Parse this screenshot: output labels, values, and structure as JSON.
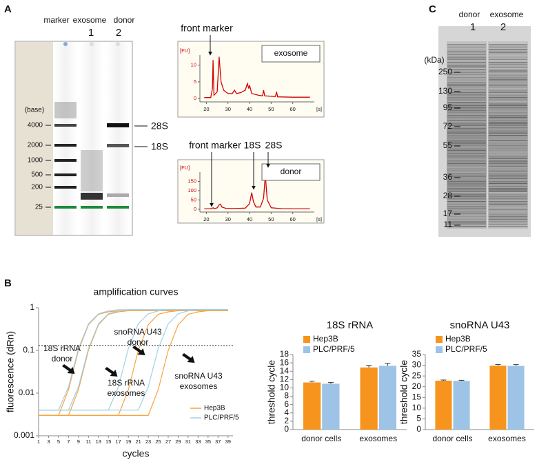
{
  "panel_labels": [
    "A",
    "B",
    "C"
  ],
  "gel_a": {
    "lanes": [
      "marker",
      "exosome",
      "donor"
    ],
    "lane_numbers": [
      "1",
      "2"
    ],
    "unit": "(base)",
    "ladder": [
      4000,
      2000,
      1000,
      500,
      200,
      25
    ],
    "bands": [
      "28S",
      "18S"
    ]
  },
  "gel_c": {
    "lanes": [
      "donor",
      "exosome"
    ],
    "lane_numbers": [
      "1",
      "2"
    ],
    "unit": "(kDa)",
    "ladder": [
      250,
      130,
      95,
      72,
      55,
      36,
      28,
      17,
      11
    ]
  },
  "chart_data": [
    {
      "type": "electropherogram",
      "legend_label": "exosome",
      "y_label": "[FU]",
      "x_label": "[s]",
      "color": "#d40000",
      "annotations": [
        "front marker"
      ],
      "x": [
        19,
        22,
        22.8,
        23.1,
        23.5,
        25,
        25.9,
        26.8,
        28,
        30,
        32,
        33,
        34,
        36,
        38,
        39,
        39.6,
        40,
        41,
        44,
        46,
        46.5,
        47,
        52,
        52.5,
        53,
        60,
        68
      ],
      "values": [
        0.3,
        0.3,
        3,
        11.5,
        1,
        2,
        12.5,
        5,
        2.5,
        1.5,
        1.5,
        2.5,
        1.5,
        1.8,
        2.5,
        4.5,
        3,
        4,
        1.5,
        1,
        0.8,
        2.5,
        0.8,
        0.6,
        2,
        0.5,
        0.4,
        0.4
      ],
      "xlim": [
        17,
        70
      ],
      "xticks": [
        20,
        30,
        40,
        50,
        60
      ],
      "ylim": [
        -1,
        13
      ],
      "yticks": [
        0,
        5,
        10
      ]
    },
    {
      "type": "electropherogram",
      "legend_label": "donor",
      "y_label": "[FU]",
      "x_label": "[s]",
      "color": "#d40000",
      "annotations": [
        "front marker",
        "18S",
        "28S"
      ],
      "x": [
        19,
        22,
        23.2,
        23.6,
        25,
        26,
        26.5,
        27.2,
        29,
        33,
        38,
        40,
        41,
        41.8,
        43,
        45,
        46.5,
        47.3,
        48.2,
        50,
        55,
        60,
        68
      ],
      "values": [
        2,
        2,
        8,
        2,
        8,
        25,
        28,
        12,
        5,
        4,
        6,
        30,
        90,
        40,
        12,
        12,
        60,
        185,
        50,
        8,
        3,
        2,
        2
      ],
      "xlim": [
        17,
        70
      ],
      "xticks": [
        20,
        30,
        40,
        50,
        60
      ],
      "ylim": [
        -15,
        200
      ],
      "yticks": [
        0,
        50,
        100,
        150
      ]
    },
    {
      "type": "amplification",
      "title": "amplification curves",
      "x_label": "cycles",
      "y_label": "fluorescence (dRn)",
      "log_y": true,
      "threshold": 0.13,
      "annotations": [
        [
          "18S rRNA",
          "donor"
        ],
        [
          "18S rRNA",
          "exosomes"
        ],
        [
          "snoRNA U43",
          "donor"
        ],
        [
          "snoRNA U43",
          "exosomes"
        ]
      ],
      "x": [
        1,
        3,
        5,
        7,
        9,
        11,
        13,
        15,
        17,
        19,
        21,
        23,
        25,
        27,
        29,
        31,
        33,
        35,
        37,
        39
      ],
      "xlim": [
        1,
        40
      ],
      "xticks": [
        1,
        3,
        5,
        7,
        9,
        11,
        13,
        15,
        17,
        19,
        21,
        23,
        25,
        27,
        29,
        31,
        33,
        35,
        37,
        39
      ],
      "ylim": [
        0.001,
        1
      ],
      "yticks": [
        0.001,
        0.01,
        0.1,
        1
      ],
      "series": [
        {
          "name": "Hep3B",
          "color": "#f7a33c",
          "curves": [
            [
              0.003,
              0.003,
              0.003,
              0.012,
              0.1,
              0.4,
              0.7,
              0.8,
              0.85,
              0.85,
              0.85,
              0.85,
              0.85,
              0.85,
              0.85,
              0.85,
              0.85,
              0.85,
              0.85,
              0.85
            ],
            [
              0.003,
              0.003,
              0.003,
              0.003,
              0.012,
              0.1,
              0.4,
              0.7,
              0.8,
              0.85,
              0.85,
              0.85,
              0.85,
              0.85,
              0.85,
              0.85,
              0.85,
              0.85,
              0.85,
              0.85
            ],
            [
              0.003,
              0.003,
              0.003,
              0.003,
              0.003,
              0.003,
              0.003,
              0.003,
              0.003,
              0.012,
              0.1,
              0.4,
              0.7,
              0.8,
              0.85,
              0.85,
              0.85,
              0.85,
              0.85,
              0.85
            ],
            [
              0.003,
              0.003,
              0.003,
              0.003,
              0.003,
              0.003,
              0.003,
              0.003,
              0.003,
              0.003,
              0.003,
              0.003,
              0.012,
              0.1,
              0.4,
              0.7,
              0.8,
              0.85,
              0.85,
              0.85
            ]
          ]
        },
        {
          "name": "PLC/PRF/5",
          "color": "#9fd0e8",
          "curves": [
            [
              0.004,
              0.004,
              0.004,
              0.014,
              0.11,
              0.42,
              0.72,
              0.84,
              0.9,
              0.9,
              0.9,
              0.9,
              0.9,
              0.9,
              0.9,
              0.9,
              0.9,
              0.9,
              0.9,
              0.9
            ],
            [
              0.004,
              0.004,
              0.004,
              0.004,
              0.014,
              0.11,
              0.42,
              0.72,
              0.84,
              0.9,
              0.9,
              0.9,
              0.9,
              0.9,
              0.9,
              0.9,
              0.9,
              0.9,
              0.9,
              0.9
            ],
            [
              0.004,
              0.004,
              0.004,
              0.004,
              0.004,
              0.004,
              0.004,
              0.004,
              0.014,
              0.11,
              0.42,
              0.72,
              0.84,
              0.9,
              0.9,
              0.9,
              0.9,
              0.9,
              0.9,
              0.9
            ],
            [
              0.004,
              0.004,
              0.004,
              0.004,
              0.004,
              0.004,
              0.004,
              0.004,
              0.004,
              0.004,
              0.004,
              0.014,
              0.11,
              0.42,
              0.72,
              0.84,
              0.9,
              0.9,
              0.9,
              0.9
            ]
          ]
        }
      ]
    },
    {
      "type": "bar",
      "title": "18S rRNA",
      "y_label": "threshold cycle",
      "categories": [
        "donor cells",
        "exosomes"
      ],
      "series": [
        {
          "name": "Hep3B",
          "color": "#f7941d",
          "values": [
            11.3,
            14.9
          ],
          "errors": [
            0.3,
            0.5
          ]
        },
        {
          "name": "PLC/PRF/5",
          "color": "#9dc3e6",
          "values": [
            11.0,
            15.3
          ],
          "errors": [
            0.3,
            0.6
          ]
        }
      ],
      "ylim": [
        0,
        18
      ],
      "yticks": [
        0,
        2,
        4,
        6,
        8,
        10,
        12,
        14,
        16,
        18
      ]
    },
    {
      "type": "bar",
      "title": "snoRNA U43",
      "y_label": "threshold cycle",
      "categories": [
        "donor cells",
        "exosomes"
      ],
      "series": [
        {
          "name": "Hep3B",
          "color": "#f7941d",
          "values": [
            22.8,
            29.8
          ],
          "errors": [
            0.3,
            0.6
          ]
        },
        {
          "name": "PLC/PRF/5",
          "color": "#9dc3e6",
          "values": [
            22.7,
            29.7
          ],
          "errors": [
            0.3,
            0.6
          ]
        }
      ],
      "ylim": [
        0,
        35
      ],
      "yticks": [
        0,
        5,
        10,
        15,
        20,
        25,
        30,
        35
      ]
    }
  ]
}
